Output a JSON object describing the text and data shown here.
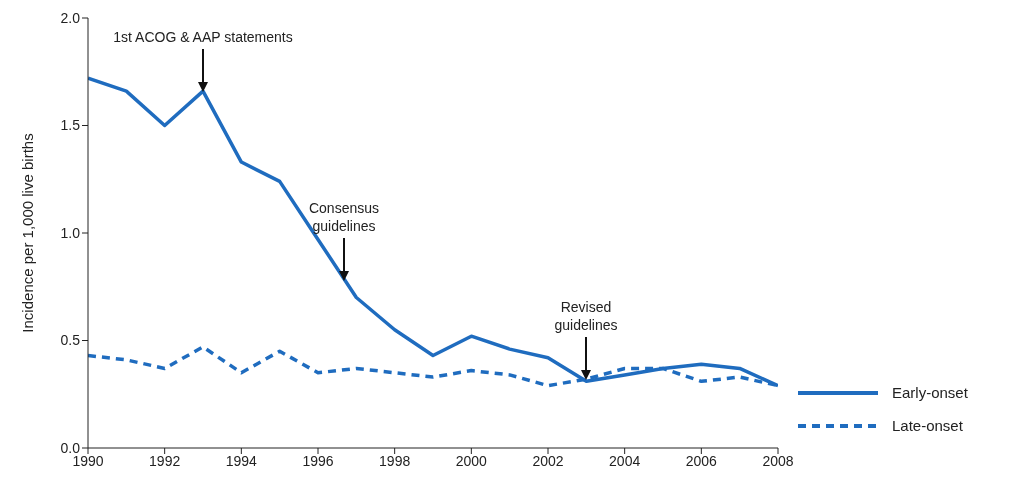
{
  "chart_data": {
    "type": "line",
    "ylabel": "Incidence per 1,000 live births",
    "x": [
      1990,
      1991,
      1992,
      1993,
      1994,
      1995,
      1996,
      1997,
      1998,
      1999,
      2000,
      2001,
      2002,
      2003,
      2004,
      2005,
      2006,
      2007,
      2008
    ],
    "xlim": [
      1990,
      2008
    ],
    "xticks": [
      1990,
      1992,
      1994,
      1996,
      1998,
      2000,
      2002,
      2004,
      2006,
      2008
    ],
    "ylim": [
      0,
      2
    ],
    "yticks": [
      {
        "value": 0,
        "label": "0.0"
      },
      {
        "value": 0.5,
        "label": "0.5"
      },
      {
        "value": 1,
        "label": "1.0"
      },
      {
        "value": 1.5,
        "label": "1.5"
      },
      {
        "value": 2,
        "label": "2.0"
      }
    ],
    "series": [
      {
        "name": "Early-onset",
        "color": "#1f6cbf",
        "line_style": "solid",
        "values": [
          1.72,
          1.66,
          1.5,
          1.66,
          1.33,
          1.24,
          0.97,
          0.7,
          0.55,
          0.43,
          0.52,
          0.46,
          0.42,
          0.31,
          0.34,
          0.37,
          0.39,
          0.37,
          0.29
        ]
      },
      {
        "name": "Late-onset",
        "color": "#1f6cbf",
        "line_style": "dashed",
        "values": [
          0.43,
          0.41,
          0.37,
          0.47,
          0.35,
          0.45,
          0.35,
          0.37,
          0.35,
          0.33,
          0.36,
          0.34,
          0.29,
          0.32,
          0.37,
          0.37,
          0.31,
          0.33,
          0.29
        ]
      }
    ],
    "annotations": [
      "1st ACOG & AAP statements",
      "Consensus\nguidelines",
      "Revised\nguidelines"
    ],
    "grid": false,
    "legend": "right",
    "marker": "none"
  }
}
